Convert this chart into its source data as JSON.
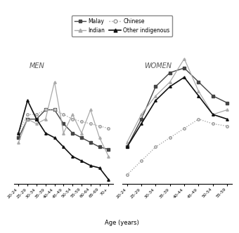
{
  "men_ages": [
    "20-24",
    "25-29",
    "30-34",
    "35-39",
    "40-44",
    "45-49",
    "50-54",
    "55-59",
    "60-64",
    "65-69",
    "70+"
  ],
  "women_ages": [
    "20-24",
    "25-29",
    "30-34",
    "35-39",
    "40-44",
    "45-49",
    "50-54",
    "55-59"
  ],
  "men_malay": [
    20,
    28,
    28,
    32,
    32,
    26,
    22,
    20,
    18,
    16,
    15
  ],
  "men_chinese": [
    22,
    30,
    30,
    32,
    32,
    30,
    28,
    27,
    26,
    25,
    24
  ],
  "men_indian": [
    18,
    28,
    26,
    28,
    44,
    22,
    30,
    22,
    32,
    20,
    12
  ],
  "men_other_indigenous": [
    22,
    36,
    28,
    22,
    20,
    16,
    12,
    10,
    8,
    7,
    2
  ],
  "women_malay": [
    16,
    28,
    42,
    48,
    50,
    44,
    38,
    35
  ],
  "women_chinese": [
    4,
    10,
    16,
    20,
    24,
    28,
    26,
    25
  ],
  "women_indian": [
    18,
    30,
    38,
    44,
    54,
    40,
    30,
    32
  ],
  "women_other_indigenous": [
    16,
    26,
    36,
    42,
    46,
    38,
    30,
    28
  ],
  "background_color": "#ffffff",
  "color_malay": "#444444",
  "color_chinese": "#999999",
  "color_indian": "#aaaaaa",
  "color_other": "#111111",
  "title_fontsize": 7,
  "axis_fontsize": 6,
  "tick_fontsize": 4.5
}
